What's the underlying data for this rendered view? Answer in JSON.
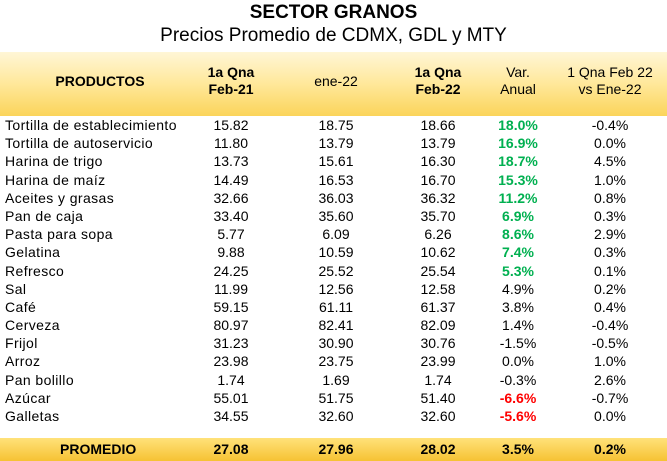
{
  "title": "SECTOR GRANOS",
  "subtitle": "Precios Promedio de CDMX, GDL y MTY",
  "headers": {
    "productos": "PRODUCTOS",
    "col1_line1": "1a Qna",
    "col1_line2": "Feb-21",
    "col2_line1": "ene-22",
    "col3_line1": "1a Qna",
    "col3_line2": "Feb-22",
    "col4_line1": "Var.",
    "col4_line2": "Anual",
    "col5_line1": "1 Qna Feb 22",
    "col5_line2": "vs Ene-22"
  },
  "rows": [
    {
      "producto": "Tortilla de establecimiento",
      "feb21": "15.82",
      "ene22": "18.75",
      "feb22": "18.66",
      "var": "18.0%",
      "vs": "-0.4%",
      "status": "pos"
    },
    {
      "producto": "Tortilla de autoservicio",
      "feb21": "11.80",
      "ene22": "13.79",
      "feb22": "13.79",
      "var": "16.9%",
      "vs": "0.0%",
      "status": "pos"
    },
    {
      "producto": "Harina de trigo",
      "feb21": "13.73",
      "ene22": "15.61",
      "feb22": "16.30",
      "var": "18.7%",
      "vs": "4.5%",
      "status": "pos"
    },
    {
      "producto": "Harina de maíz",
      "feb21": "14.49",
      "ene22": "16.53",
      "feb22": "16.70",
      "var": "15.3%",
      "vs": "1.0%",
      "status": "pos"
    },
    {
      "producto": "Aceites y grasas",
      "feb21": "32.66",
      "ene22": "36.03",
      "feb22": "36.32",
      "var": "11.2%",
      "vs": "0.8%",
      "status": "pos"
    },
    {
      "producto": "Pan de caja",
      "feb21": "33.40",
      "ene22": "35.60",
      "feb22": "35.70",
      "var": "6.9%",
      "vs": "0.3%",
      "status": "pos"
    },
    {
      "producto": "Pasta para sopa",
      "feb21": "5.77",
      "ene22": "6.09",
      "feb22": "6.26",
      "var": "8.6%",
      "vs": "2.9%",
      "status": "pos"
    },
    {
      "producto": "Gelatina",
      "feb21": "9.88",
      "ene22": "10.59",
      "feb22": "10.62",
      "var": "7.4%",
      "vs": "0.3%",
      "status": "pos"
    },
    {
      "producto": "Refresco",
      "feb21": "24.25",
      "ene22": "25.52",
      "feb22": "25.54",
      "var": "5.3%",
      "vs": "0.1%",
      "status": "pos"
    },
    {
      "producto": "Sal",
      "feb21": "11.99",
      "ene22": "12.56",
      "feb22": "12.58",
      "var": "4.9%",
      "vs": "0.2%",
      "status": "normal"
    },
    {
      "producto": "Café",
      "feb21": "59.15",
      "ene22": "61.11",
      "feb22": "61.37",
      "var": "3.8%",
      "vs": "0.4%",
      "status": "normal"
    },
    {
      "producto": "Cerveza",
      "feb21": "80.97",
      "ene22": "82.41",
      "feb22": "82.09",
      "var": "1.4%",
      "vs": "-0.4%",
      "status": "normal"
    },
    {
      "producto": "Frijol",
      "feb21": "31.23",
      "ene22": "30.90",
      "feb22": "30.76",
      "var": "-1.5%",
      "vs": "-0.5%",
      "status": "normal"
    },
    {
      "producto": "Arroz",
      "feb21": "23.98",
      "ene22": "23.75",
      "feb22": "23.99",
      "var": "0.0%",
      "vs": "1.0%",
      "status": "normal"
    },
    {
      "producto": "Pan bolillo",
      "feb21": "1.74",
      "ene22": "1.69",
      "feb22": "1.74",
      "var": "-0.3%",
      "vs": "2.6%",
      "status": "normal"
    },
    {
      "producto": "Azúcar",
      "feb21": "55.01",
      "ene22": "51.75",
      "feb22": "51.40",
      "var": "-6.6%",
      "vs": "-0.7%",
      "status": "neg"
    },
    {
      "producto": "Galletas",
      "feb21": "34.55",
      "ene22": "32.60",
      "feb22": "32.60",
      "var": "-5.6%",
      "vs": "0.0%",
      "status": "neg"
    }
  ],
  "footer": {
    "label": "PROMEDIO",
    "feb21": "27.08",
    "ene22": "27.96",
    "feb22": "28.02",
    "var": "3.5%",
    "vs": "0.2%"
  },
  "colors": {
    "positive": "#00b050",
    "negative": "#ff0000",
    "header_gold": "#fbd45a"
  }
}
